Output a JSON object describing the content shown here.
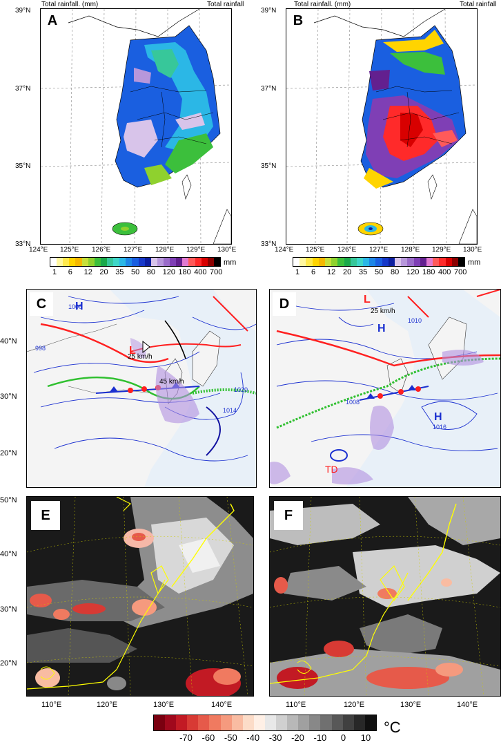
{
  "panels": {
    "A": {
      "label": "A",
      "title_left": "Total rainfall. (mm)",
      "title_right": "Total rainfall"
    },
    "B": {
      "label": "B",
      "title_left": "Total rainfall. (mm)",
      "title_right": "Total rainfall"
    },
    "C": {
      "label": "C"
    },
    "D": {
      "label": "D"
    },
    "E": {
      "label": "E"
    },
    "F": {
      "label": "F"
    }
  },
  "rain_axes": {
    "lat_labels": [
      "39°N",
      "37°N",
      "35°N",
      "33°N"
    ],
    "lon_labels": [
      "124°E",
      "125°E",
      "126°E",
      "127°E",
      "128°E",
      "129°E",
      "130°E"
    ]
  },
  "rain_colorbar": {
    "unit": "mm",
    "labels": [
      "1",
      "6",
      "12",
      "20",
      "35",
      "50",
      "80",
      "120",
      "180",
      "400",
      "700"
    ],
    "colors": [
      "#ffffff",
      "#fff7a0",
      "#ffe94c",
      "#ffd400",
      "#f5b800",
      "#c7e03a",
      "#8fd12e",
      "#3cbf3c",
      "#1aa84a",
      "#37c79a",
      "#3fd6c8",
      "#2bb7e6",
      "#1e86e6",
      "#1a5fe0",
      "#1638c8",
      "#0c1ea0",
      "#d8c4ea",
      "#b797db",
      "#9a6cc9",
      "#7f3fb5",
      "#63208f",
      "#e07ad0",
      "#ff5a5a",
      "#ff2a2a",
      "#d80000",
      "#8a0000",
      "#000000"
    ]
  },
  "synoptic": {
    "lat_labels": [
      "40°N",
      "30°N",
      "20°N"
    ],
    "speed_C1": "25 km/h",
    "speed_C2": "45 km/h",
    "speed_D1": "25 km/h",
    "td_label": "TD",
    "high_C": "H",
    "high_D1": "H",
    "high_D2": "H",
    "low_C": "L",
    "low_D": "L",
    "isobar_C": [
      "1000",
      "1014",
      "1020",
      "998"
    ],
    "isobar_D": [
      "1010",
      "1016",
      "1008"
    ]
  },
  "satellite": {
    "lat_labels": [
      "50°N",
      "40°N",
      "30°N",
      "20°N"
    ],
    "lon_labels_E": [
      "110°E",
      "120°E",
      "130°E",
      "140°E"
    ],
    "lon_labels_F": [
      "110°E",
      "120°E",
      "130°E",
      "140°E"
    ]
  },
  "ir_colorbar": {
    "unit": "°C",
    "labels": [
      "-70",
      "-60",
      "-50",
      "-40",
      "-30",
      "-20",
      "-10",
      "0",
      "10"
    ],
    "colors": [
      "#7a0010",
      "#a0081c",
      "#c21a24",
      "#d83a34",
      "#e65a4a",
      "#f07a60",
      "#f59a7e",
      "#f9bca2",
      "#fcdcc8",
      "#fff0e6",
      "#e8e8e8",
      "#d0d0d0",
      "#b8b8b8",
      "#a0a0a0",
      "#888888",
      "#707070",
      "#585858",
      "#404040",
      "#282828",
      "#101010"
    ]
  },
  "colors": {
    "rain_blue": "#1638c8",
    "rain_purple": "#9a6cc9",
    "front_red": "#ff2020",
    "front_green": "#30c030",
    "isobar_blue": "#1a2fd0",
    "sat_yellow": "#ffff00"
  }
}
